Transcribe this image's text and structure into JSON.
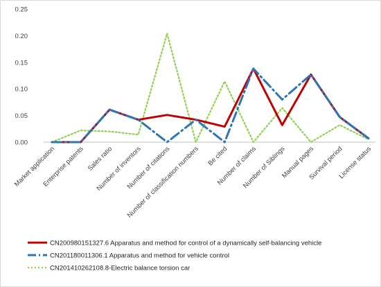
{
  "chart_data": {
    "type": "line",
    "categories": [
      "Market application",
      "Enterprise patents",
      "Sales ratio",
      "Number of inventors",
      "Number of citations",
      "Number of classification numbers",
      "Be cited",
      "Number of claims",
      "Number of Siblings",
      "Manual pages",
      "Survival period",
      "License status"
    ],
    "yticks": [
      "0.00",
      "0.05",
      "0.10",
      "0.15",
      "0.20",
      "0.25"
    ],
    "ylim": [
      0,
      0.25
    ],
    "grid": false,
    "legend_position": "bottom",
    "series": [
      {
        "name": "CN200980151327.6 Apparatus and method for control of a dynamically self-balancing vehicle",
        "color": "#c00000",
        "style": "solid",
        "values": [
          0.0,
          0.0,
          0.061,
          0.042,
          0.051,
          0.042,
          0.029,
          0.138,
          0.032,
          0.127,
          0.047,
          0.007
        ]
      },
      {
        "name": "CN201180011306.1 Apparatus and method for vehicle control",
        "color": "#2e75b6",
        "style": "dashdot",
        "values": [
          0.0,
          0.0,
          0.061,
          0.042,
          0.0,
          0.042,
          0.0,
          0.138,
          0.08,
          0.127,
          0.047,
          0.007
        ]
      },
      {
        "name": "CN201410262108.8-Electric balance torsion car",
        "color": "#92d050",
        "style": "dotted",
        "values": [
          0.0,
          0.022,
          0.02,
          0.014,
          0.204,
          0.0,
          0.114,
          0.0,
          0.064,
          0.0,
          0.032,
          0.005
        ]
      }
    ]
  }
}
